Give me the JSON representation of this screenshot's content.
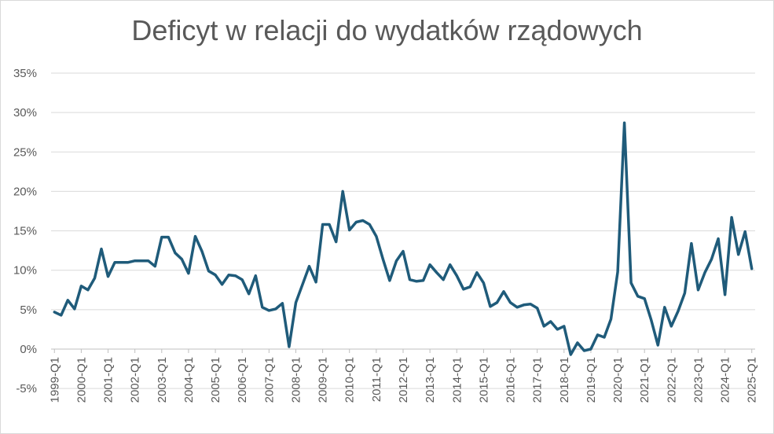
{
  "chart_data": {
    "type": "line",
    "title": "Deficyt w relacji do wydatków rządowych",
    "xlabel": "",
    "ylabel": "",
    "ylim": [
      -5,
      35
    ],
    "yticks": [
      -5,
      0,
      5,
      10,
      15,
      20,
      25,
      30,
      35
    ],
    "ytick_labels": [
      "-5%",
      "0%",
      "5%",
      "10%",
      "15%",
      "20%",
      "25%",
      "30%",
      "35%"
    ],
    "x_tick_labels": [
      "1999-Q1",
      "2000-Q1",
      "2001-Q1",
      "2002-Q1",
      "2003-Q1",
      "2004-Q1",
      "2005-Q1",
      "2006-Q1",
      "2007-Q1",
      "2008-Q1",
      "2009-Q1",
      "2010-Q1",
      "2011-Q1",
      "2012-Q1",
      "2013-Q1",
      "2014-Q1",
      "2015-Q1",
      "2016-Q1",
      "2017-Q1",
      "2018-Q1",
      "2019-Q1",
      "2020-Q1",
      "2021-Q1",
      "2022-Q1",
      "2023-Q1",
      "2024-Q1",
      "2025-Q1"
    ],
    "grid": true,
    "line_color": "#1f5b7a",
    "series": [
      {
        "name": "",
        "values": [
          4.7,
          4.3,
          6.2,
          5.1,
          8.0,
          7.5,
          9.0,
          12.7,
          9.2,
          11.0,
          11.0,
          11.0,
          11.2,
          11.2,
          11.2,
          10.5,
          14.2,
          14.2,
          12.2,
          11.4,
          9.6,
          14.3,
          12.4,
          9.9,
          9.4,
          8.2,
          9.4,
          9.3,
          8.8,
          7.0,
          9.3,
          5.3,
          4.9,
          5.1,
          5.8,
          0.3,
          5.9,
          8.2,
          10.5,
          8.5,
          15.8,
          15.8,
          13.6,
          20.0,
          15.1,
          16.1,
          16.3,
          15.8,
          14.3,
          11.4,
          8.7,
          11.2,
          12.4,
          8.8,
          8.6,
          8.7,
          10.7,
          9.7,
          8.8,
          10.7,
          9.3,
          7.6,
          7.9,
          9.7,
          8.4,
          5.4,
          5.9,
          7.3,
          5.9,
          5.3,
          5.6,
          5.7,
          5.2,
          2.9,
          3.5,
          2.5,
          2.9,
          -0.7,
          0.8,
          -0.2,
          0.0,
          1.8,
          1.5,
          3.8,
          9.8,
          28.7,
          8.4,
          6.7,
          6.4,
          3.7,
          0.5,
          5.3,
          2.9,
          4.8,
          7.1,
          13.4,
          7.5,
          9.7,
          11.4,
          14.0,
          6.9,
          16.7,
          12.0,
          14.9,
          10.2
        ]
      }
    ]
  }
}
